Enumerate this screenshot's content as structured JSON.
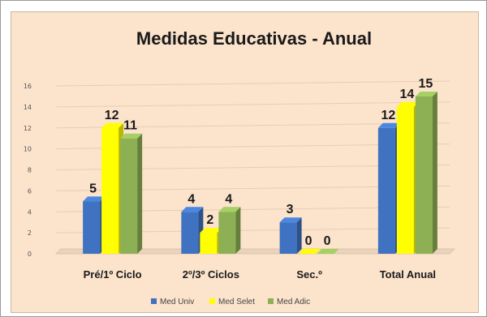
{
  "chart_data": {
    "type": "bar",
    "title": "Medidas Educativas - Anual",
    "categories": [
      "Pré/1º Ciclo",
      "2º/3º Ciclos",
      "Sec.º",
      "Total Anual"
    ],
    "series": [
      {
        "name": "Med Univ",
        "values": [
          5,
          4,
          3,
          12
        ],
        "color": "#3f72c0"
      },
      {
        "name": "Med Selet",
        "values": [
          12,
          2,
          0,
          14
        ],
        "color": "#ffff00"
      },
      {
        "name": "Med Adic",
        "values": [
          11,
          4,
          0,
          15
        ],
        "color": "#8db054"
      }
    ],
    "data_labels": [
      [
        "5",
        "12",
        "11"
      ],
      [
        "4",
        "2",
        "4"
      ],
      [
        "3",
        "0",
        "0"
      ],
      [
        "12",
        "14",
        "15"
      ]
    ],
    "ylim": [
      0,
      16
    ],
    "yticks": [
      "0",
      "2",
      "4",
      "6",
      "8",
      "10",
      "12",
      "14",
      "16"
    ],
    "xlabel": "",
    "ylabel": "",
    "grid": true,
    "legend_position": "bottom"
  }
}
